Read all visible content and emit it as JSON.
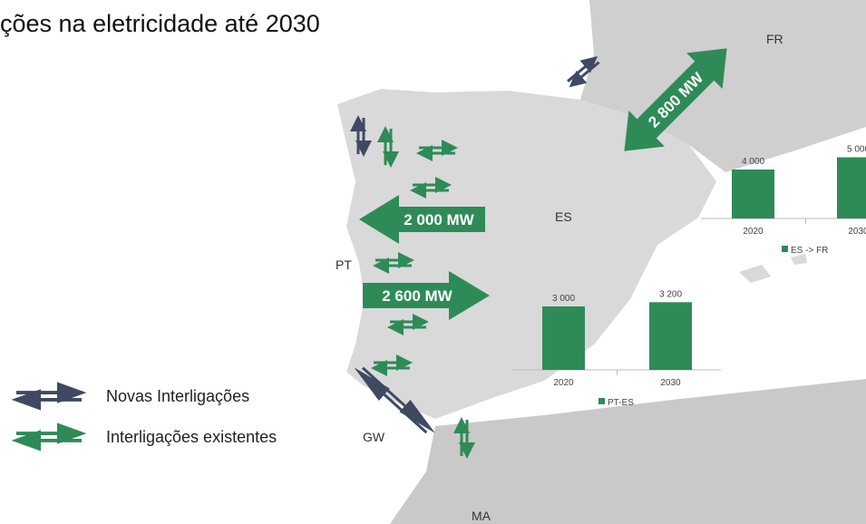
{
  "title": "ções na eletricidade até 2030",
  "regions": {
    "fr": "FR",
    "es": "ES",
    "pt": "PT",
    "ma": "MA",
    "gw": "GW"
  },
  "flows": [
    "2 800 MW",
    "2 000 MW",
    "2 600 MW"
  ],
  "legend": [
    "Novas Interligações",
    "Interligações existentes"
  ],
  "charts": [
    {
      "series": "PT-ES",
      "categories": [
        "2020",
        "2030"
      ],
      "values": [
        3000,
        3200
      ],
      "value_labels": [
        "3 000",
        "3 200"
      ]
    },
    {
      "series": "ES -> FR",
      "categories": [
        "2020",
        "2030"
      ],
      "values": [
        4000,
        5000
      ],
      "value_labels": [
        "4 000",
        "5 000"
      ]
    }
  ]
}
